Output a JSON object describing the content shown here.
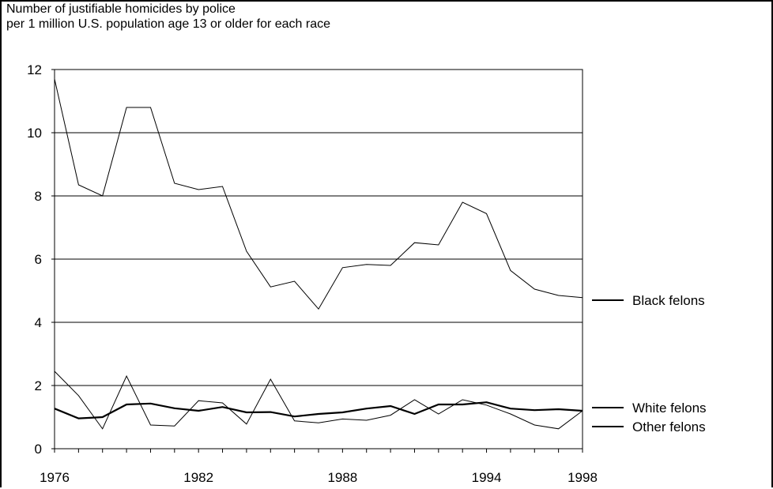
{
  "chart_data": {
    "type": "line",
    "title_lines": [
      "Number of justifiable homicides by police",
      "per 1 million U.S. population age 13 or older for each race"
    ],
    "xlabel": "",
    "ylabel": "",
    "xlim": [
      1976,
      1998
    ],
    "ylim": [
      0,
      12
    ],
    "x_ticks": [
      "1976",
      "1982",
      "1988",
      "1994",
      "1998"
    ],
    "y_ticks": [
      "0",
      "2",
      "4",
      "6",
      "8",
      "10",
      "12"
    ],
    "grid": true,
    "legend_position": "right",
    "x": [
      1976,
      1977,
      1978,
      1979,
      1980,
      1981,
      1982,
      1983,
      1984,
      1985,
      1986,
      1987,
      1988,
      1989,
      1990,
      1991,
      1992,
      1993,
      1994,
      1995,
      1996,
      1997,
      1998
    ],
    "series": [
      {
        "name": "Black felons",
        "values": [
          11.7,
          8.35,
          8.0,
          10.8,
          10.8,
          8.4,
          8.2,
          8.3,
          6.25,
          5.12,
          5.3,
          4.42,
          5.73,
          5.83,
          5.8,
          6.52,
          6.45,
          7.8,
          7.44,
          5.64,
          5.05,
          4.85,
          4.78
        ],
        "stroke_width": 1
      },
      {
        "name": "White felons",
        "values": [
          1.27,
          0.96,
          1.0,
          1.4,
          1.43,
          1.28,
          1.2,
          1.32,
          1.15,
          1.16,
          1.02,
          1.1,
          1.15,
          1.27,
          1.35,
          1.1,
          1.4,
          1.4,
          1.47,
          1.27,
          1.22,
          1.25,
          1.2
        ],
        "stroke_width": 2.2
      },
      {
        "name": "Other felons",
        "values": [
          2.45,
          1.68,
          0.63,
          2.3,
          0.75,
          0.72,
          1.52,
          1.45,
          0.78,
          2.2,
          0.88,
          0.82,
          0.94,
          0.9,
          1.06,
          1.55,
          1.1,
          1.55,
          1.38,
          1.1,
          0.75,
          0.63,
          1.2
        ],
        "stroke_width": 1
      }
    ]
  }
}
